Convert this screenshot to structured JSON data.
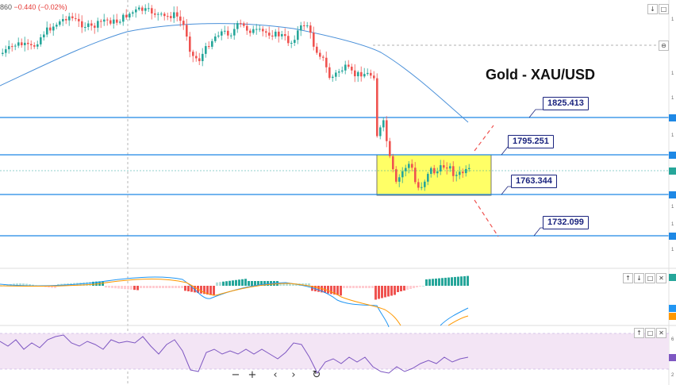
{
  "header": {
    "ohlc_prefix": "860",
    "change_text": "−0.440 (−0.02%)"
  },
  "title": "Gold - XAU/USD",
  "levels": {
    "l1825": "1825.413",
    "l1795": "1795.251",
    "l1763": "1763.344",
    "l1732": "1732.099"
  },
  "pane_buttons": {
    "up": "↑",
    "down": "↓",
    "maximize": "□",
    "close": "✕",
    "settings": "⊖"
  },
  "nav": {
    "zoom_out": "−",
    "zoom_in": "+",
    "back": "‹",
    "forward": "›",
    "reset": "↻"
  },
  "axis_ticks": [
    "1",
    "1",
    "1",
    "1",
    "1",
    "1",
    "1",
    "6",
    "2"
  ],
  "colors": {
    "bull": "#26a69a",
    "bear": "#ef5350",
    "level": "#1e88e5",
    "box": "#ffff66",
    "ma": "#4a90d9",
    "rsi_bg": "#f3e5f5",
    "rsi": "#7e57c2"
  },
  "chart_data": {
    "type": "candlestick",
    "title": "Gold - XAU/USD",
    "horizontal_levels": [
      1825.413,
      1795.251,
      1763.344,
      1732.099
    ],
    "consolidation_zone": [
      1763.344,
      1795.251
    ],
    "indicators": [
      "MACD",
      "RSI"
    ]
  }
}
